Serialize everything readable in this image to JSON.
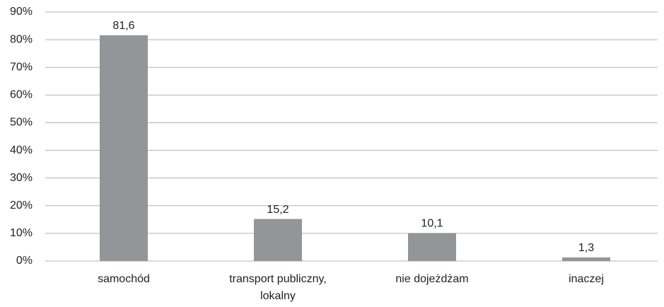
{
  "chart_data": {
    "type": "bar",
    "categories": [
      "samochód",
      "transport publiczny, lokalny",
      "nie dojeżdżam",
      "inaczej"
    ],
    "values": [
      81.6,
      15.2,
      10.1,
      1.3
    ],
    "value_labels": [
      "81,6",
      "15,2",
      "10,1",
      "1,3"
    ],
    "color": "#939598",
    "ylim": [
      0,
      90
    ],
    "yticks": [
      {
        "value": 0,
        "label": "0%"
      },
      {
        "value": 10,
        "label": "10%"
      },
      {
        "value": 20,
        "label": "20%"
      },
      {
        "value": 30,
        "label": "30%"
      },
      {
        "value": 40,
        "label": "40%"
      },
      {
        "value": 50,
        "label": "50%"
      },
      {
        "value": 60,
        "label": "60%"
      },
      {
        "value": 70,
        "label": "70%"
      },
      {
        "value": 80,
        "label": "80%"
      },
      {
        "value": 90,
        "label": "90%"
      }
    ],
    "grid": true
  }
}
